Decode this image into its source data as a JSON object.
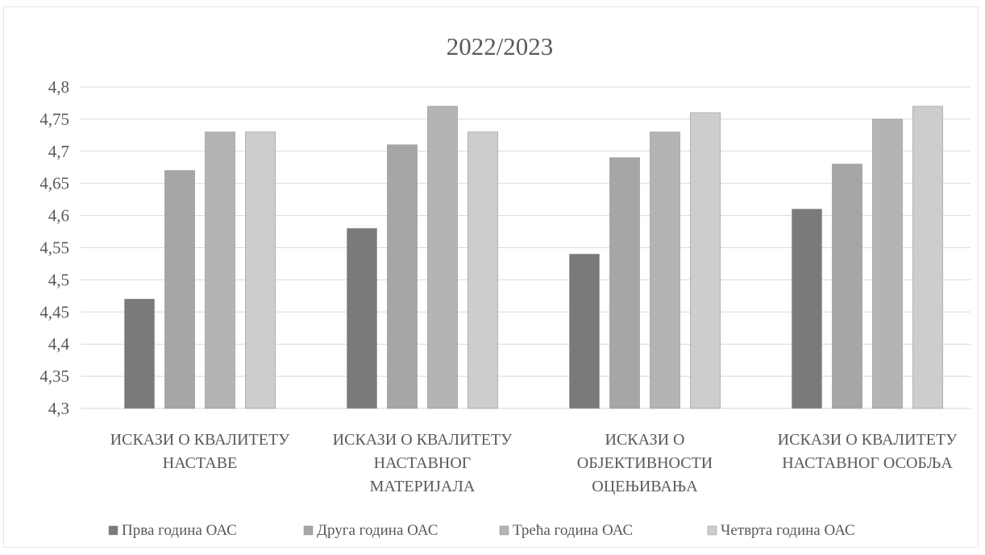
{
  "chart_data": {
    "type": "bar",
    "title": "2022/2023",
    "categories": [
      [
        "ИСКАЗИ О КВАЛИТЕТУ",
        "НАСТАВЕ"
      ],
      [
        "ИСКАЗИ О КВАЛИТЕТУ",
        "НАСТАВНОГ",
        "МАТЕРИЈАЛА"
      ],
      [
        "ИСКАЗИ О",
        "ОБЈЕКТИВНОСТИ",
        "ОЦЕЊИВАЊА"
      ],
      [
        "ИСКАЗИ О КВАЛИТЕТУ",
        "НАСТАВНОГ ОСОБЉА"
      ]
    ],
    "series": [
      {
        "name": "Прва година ОАС",
        "color": "#7a7a7a",
        "values": [
          4.47,
          4.58,
          4.54,
          4.61
        ]
      },
      {
        "name": "Друга година ОАС",
        "color": "#a6a6a6",
        "values": [
          4.67,
          4.71,
          4.69,
          4.68
        ]
      },
      {
        "name": "Трећа година ОАС",
        "color": "#b4b4b4",
        "values": [
          4.73,
          4.77,
          4.73,
          4.75
        ]
      },
      {
        "name": "Четврта година ОАС",
        "color": "#cdcdcd",
        "values": [
          4.73,
          4.73,
          4.76,
          4.77
        ]
      }
    ],
    "ylim": [
      4.3,
      4.8
    ],
    "yticks": [
      4.3,
      4.35,
      4.4,
      4.45,
      4.5,
      4.55,
      4.6,
      4.65,
      4.7,
      4.75,
      4.8
    ],
    "ytick_labels": [
      "4,3",
      "4,35",
      "4,4",
      "4,45",
      "4,5",
      "4,55",
      "4,6",
      "4,65",
      "4,7",
      "4,75",
      "4,8"
    ],
    "grid": true,
    "legend_position": "bottom",
    "gridline_color": "#d9d9d9"
  }
}
